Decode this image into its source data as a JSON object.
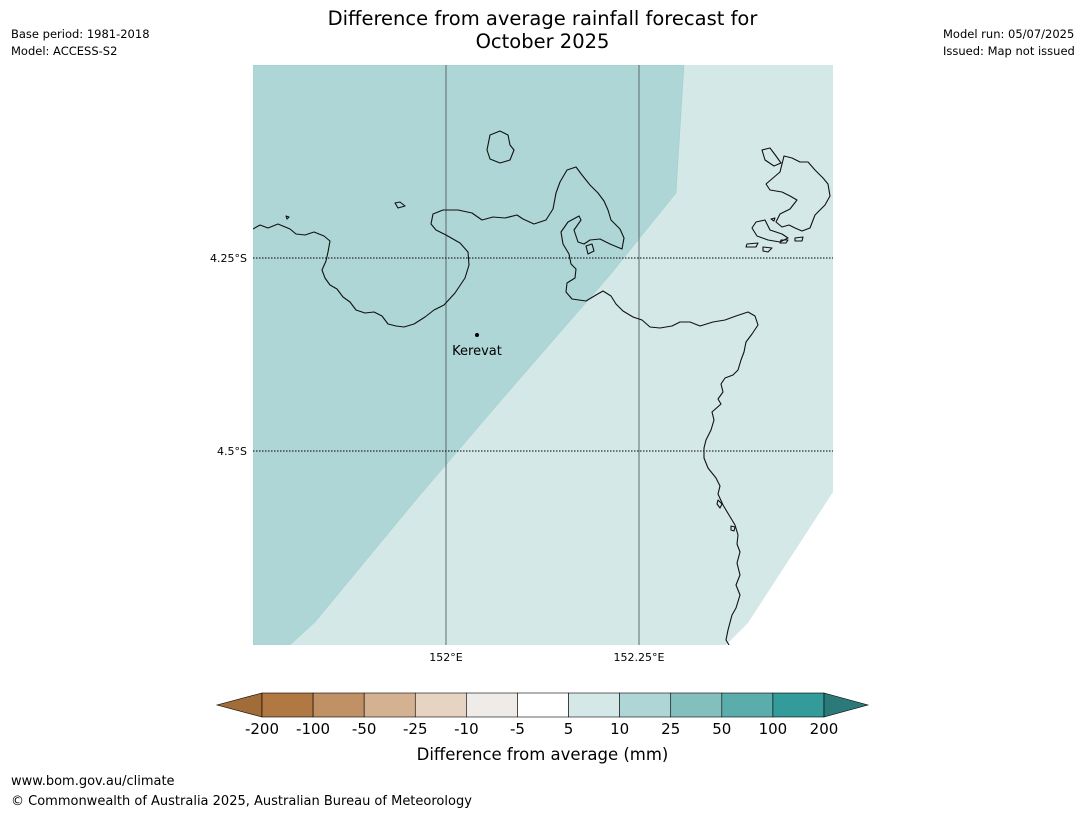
{
  "header": {
    "title_line1": "Difference from average rainfall forecast for",
    "title_line2": "October 2025",
    "base_period": "Base period: 1981-2018",
    "model": "Model: ACCESS-S2",
    "model_run": "Model run: 05/07/2025",
    "issued": "Issued: Map not issued"
  },
  "map": {
    "lat_labels": [
      "4.25°S",
      "4.5°S"
    ],
    "lon_labels": [
      "152°E",
      "152.25°E"
    ],
    "place_label": "Kerevat",
    "region_colors": {
      "10_to_25": "#aed6d6",
      "5_to_10": "#d5e8e8"
    }
  },
  "colorbar": {
    "tick_labels": [
      "-200",
      "-100",
      "-50",
      "-25",
      "-10",
      "-5",
      "5",
      "10",
      "25",
      "50",
      "100",
      "200"
    ],
    "colors": [
      "#a16c37",
      "#b07843",
      "#c19166",
      "#d4b291",
      "#e6d3c1",
      "#efebe8",
      "#ffffff",
      "#d5e8e8",
      "#aed6d6",
      "#83bfbd",
      "#5aadab",
      "#339b99",
      "#2b7979"
    ],
    "label": "Difference from average (mm)"
  },
  "footer": {
    "url": "www.bom.gov.au/climate",
    "copyright": "© Commonwealth of Australia 2025, Australian Bureau of Meteorology"
  }
}
